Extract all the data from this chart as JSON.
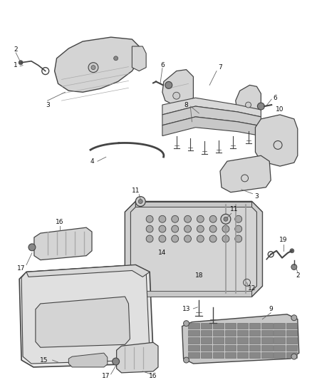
{
  "background_color": "#ffffff",
  "fig_width": 4.38,
  "fig_height": 5.33,
  "dpi": 100,
  "line_color": "#444444",
  "fill_light": "#e8e8e8",
  "fill_mid": "#d4d4d4",
  "fill_dark": "#c0c0c0",
  "label_fontsize": 6.5,
  "leader_color": "#666666"
}
